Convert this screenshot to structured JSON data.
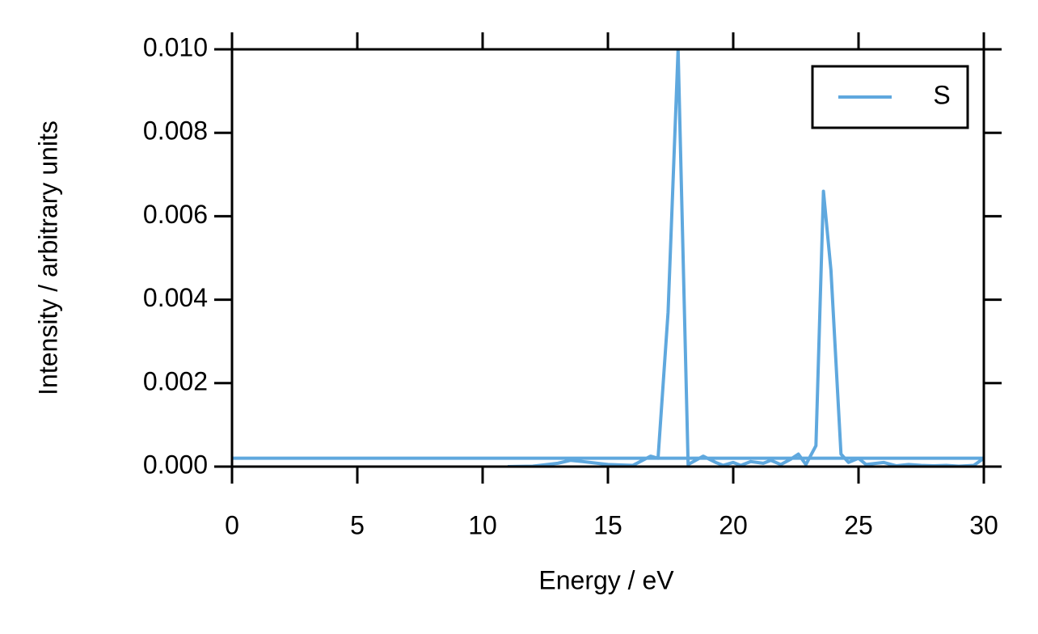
{
  "chart_data": {
    "type": "line",
    "xlabel": "Energy / eV",
    "ylabel": "Intensity / arbitrary units",
    "xlim": [
      0,
      30
    ],
    "xticks": [
      0,
      5,
      10,
      15,
      20,
      25,
      30
    ],
    "ylim": [
      0,
      0.01
    ],
    "yticks": [
      {
        "value": 0,
        "label": "0.000"
      },
      {
        "value": 0.002,
        "label": "0.002"
      },
      {
        "value": 0.004,
        "label": "0.004"
      },
      {
        "value": 0.006,
        "label": "0.006"
      },
      {
        "value": 0.008,
        "label": "0.008"
      },
      {
        "value": 0.01,
        "label": "0.010"
      }
    ],
    "legend": "upper right",
    "x": [
      11,
      12,
      13,
      13.5,
      14,
      15,
      16,
      16.7,
      17.0,
      17.4,
      17.8,
      18.2,
      18.8,
      19.3,
      19.6,
      20.0,
      20.3,
      20.7,
      21.2,
      21.5,
      21.9,
      22.3,
      22.6,
      22.9,
      23.3,
      23.6,
      23.9,
      24.3,
      24.6,
      25.0,
      25.3,
      26.0,
      26.5,
      27,
      27.5,
      28,
      28.5,
      29,
      29.6,
      30,
      0
    ],
    "series": [
      {
        "name": "S",
        "color": "#5fa8de",
        "values": [
          0,
          1e-05,
          8e-05,
          0.00015,
          0.00012,
          5e-05,
          3e-05,
          0.00025,
          0.0002,
          0.0037,
          0.01,
          5e-05,
          0.00025,
          0.0001,
          3e-05,
          0.0001,
          3e-05,
          0.00012,
          8e-05,
          0.00015,
          5e-05,
          0.00018,
          0.0003,
          5e-05,
          0.0005,
          0.0066,
          0.0047,
          0.0003,
          0.0001,
          0.0002,
          5e-05,
          0.0001,
          2e-05,
          5e-05,
          3e-05,
          2e-05,
          3e-05,
          1e-05,
          3e-05,
          0.0002,
          0.0002
        ]
      }
    ]
  }
}
